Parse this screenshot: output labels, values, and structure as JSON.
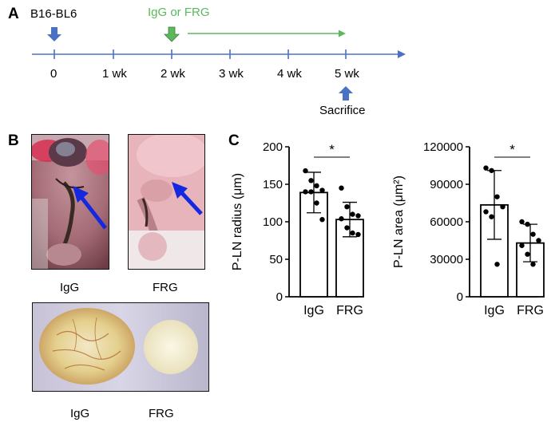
{
  "panels": {
    "a": "A",
    "b": "B",
    "c": "C"
  },
  "timeline": {
    "start_label": "B16-BL6",
    "treatment_label": "IgG or FRG",
    "end_label": "Sacrifice",
    "ticks": [
      "0",
      "1 wk",
      "2 wk",
      "3 wk",
      "4 wk",
      "5 wk"
    ],
    "colors": {
      "axis": "#4a72c4",
      "treatment": "#5cb85c",
      "marker": "#4a72c4"
    }
  },
  "photos": {
    "mouse_igg_caption": "IgG",
    "mouse_frg_caption": "FRG",
    "node_igg_caption": "IgG",
    "node_frg_caption": "FRG",
    "arrow_color": "#1428e0"
  },
  "chart_data": [
    {
      "type": "bar",
      "categories": [
        "IgG",
        "FRG"
      ],
      "values": [
        139,
        103
      ],
      "error": [
        27,
        23
      ],
      "points": [
        [
          168,
          155,
          148,
          142,
          140,
          140,
          125,
          103
        ],
        [
          145,
          120,
          110,
          108,
          104,
          92,
          85,
          83
        ]
      ],
      "ylabel": "P-LN radius (μm)",
      "ylim": [
        0,
        200
      ],
      "yticks": [
        0,
        50,
        100,
        150,
        200
      ],
      "significance": "*"
    },
    {
      "type": "bar",
      "categories": [
        "IgG",
        "FRG"
      ],
      "values": [
        73500,
        43000
      ],
      "error": [
        27500,
        15000
      ],
      "points": [
        [
          103000,
          101000,
          80000,
          72000,
          68000,
          64000,
          26000
        ],
        [
          60000,
          58000,
          50000,
          45000,
          41000,
          34000,
          26000
        ]
      ],
      "ylabel": "P-LN area (μm²)",
      "ylim": [
        0,
        120000
      ],
      "yticks": [
        0,
        30000,
        60000,
        90000,
        120000
      ],
      "significance": "*"
    }
  ]
}
